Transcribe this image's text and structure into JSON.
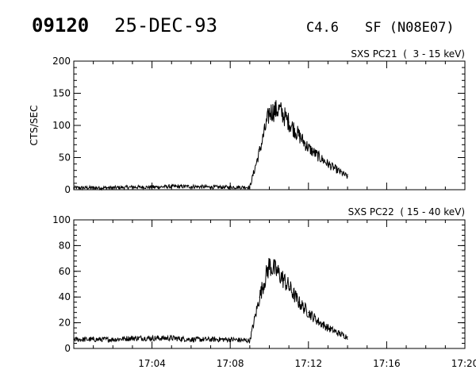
{
  "header": {
    "event_id": "09120",
    "date": "25-DEC-93",
    "goes_class": "C4.6",
    "location": "SF (N08E07)"
  },
  "chart_data": [
    {
      "type": "line",
      "title": "SXS PC21  (  3 - 15 keV)",
      "ylabel": "CTS/SEC",
      "xlim": [
        "17:00",
        "17:20"
      ],
      "ylim": [
        0,
        200
      ],
      "yticks": [
        0,
        50,
        100,
        150,
        200
      ],
      "xticks": [
        "17:04",
        "17:08",
        "17:12",
        "17:16",
        "17:20"
      ],
      "show_xtick_labels": false,
      "grid": false,
      "series": [
        {
          "x": [
            "17:00",
            "17:01",
            "17:02",
            "17:03",
            "17:04",
            "17:05",
            "17:06",
            "17:07",
            "17:08",
            "17:09",
            "17:09:30",
            "17:10",
            "17:10:30",
            "17:11",
            "17:11:30",
            "17:12",
            "17:12:30",
            "17:13",
            "17:13:30",
            "17:14"
          ],
          "values": [
            3,
            3,
            3,
            4,
            4,
            5,
            5,
            4,
            4,
            4,
            60,
            120,
            125,
            105,
            85,
            65,
            52,
            40,
            30,
            20
          ]
        }
      ]
    },
    {
      "type": "line",
      "title": "SXS PC22  ( 15 - 40 keV)",
      "ylabel": "",
      "xlim": [
        "17:00",
        "17:20"
      ],
      "ylim": [
        0,
        100
      ],
      "yticks": [
        0,
        20,
        40,
        60,
        80,
        100
      ],
      "xticks": [
        "17:04",
        "17:08",
        "17:12",
        "17:16",
        "17:20"
      ],
      "show_xtick_labels": true,
      "grid": false,
      "series": [
        {
          "x": [
            "17:00",
            "17:01",
            "17:02",
            "17:03",
            "17:04",
            "17:05",
            "17:06",
            "17:07",
            "17:08",
            "17:09",
            "17:09:30",
            "17:10",
            "17:10:30",
            "17:11",
            "17:11:30",
            "17:12",
            "17:12:30",
            "17:13",
            "17:13:30",
            "17:14"
          ],
          "values": [
            7,
            7,
            7,
            8,
            8,
            8,
            7,
            7,
            7,
            6,
            40,
            65,
            58,
            48,
            36,
            28,
            21,
            16,
            12,
            9
          ]
        }
      ]
    }
  ]
}
